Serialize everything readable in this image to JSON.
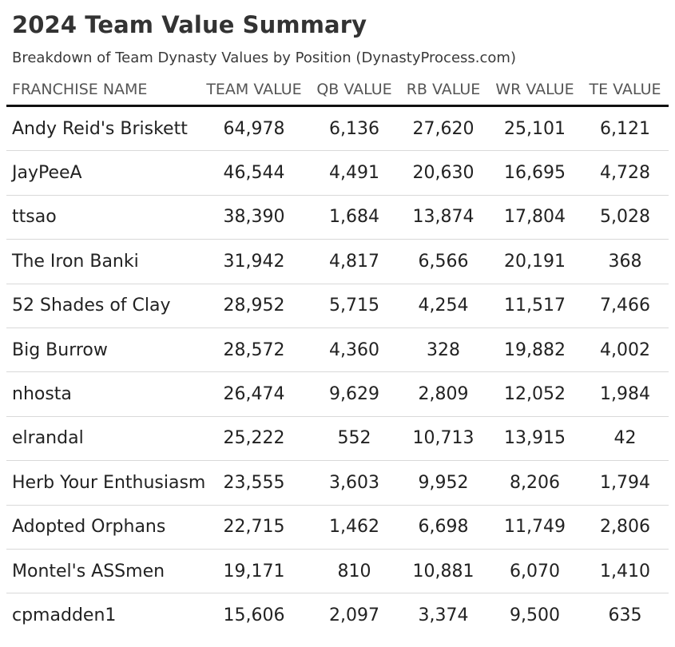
{
  "chart_data": {
    "type": "table",
    "title": "2024 Team Value Summary",
    "subtitle": "Breakdown of Team Dynasty Values by Position (DynastyProcess.com)",
    "columns": [
      "FRANCHISE NAME",
      "TEAM VALUE",
      "QB VALUE",
      "RB VALUE",
      "WR VALUE",
      "TE VALUE"
    ],
    "rows": [
      [
        "Andy Reid's Briskett",
        "64,978",
        "6,136",
        "27,620",
        "25,101",
        "6,121"
      ],
      [
        "JayPeeA",
        "46,544",
        "4,491",
        "20,630",
        "16,695",
        "4,728"
      ],
      [
        "ttsao",
        "38,390",
        "1,684",
        "13,874",
        "17,804",
        "5,028"
      ],
      [
        "The Iron Banki",
        "31,942",
        "4,817",
        "6,566",
        "20,191",
        "368"
      ],
      [
        "52 Shades of Clay",
        "28,952",
        "5,715",
        "4,254",
        "11,517",
        "7,466"
      ],
      [
        "Big Burrow",
        "28,572",
        "4,360",
        "328",
        "19,882",
        "4,002"
      ],
      [
        "nhosta",
        "26,474",
        "9,629",
        "2,809",
        "12,052",
        "1,984"
      ],
      [
        "elrandal",
        "25,222",
        "552",
        "10,713",
        "13,915",
        "42"
      ],
      [
        "Herb Your Enthusiasm",
        "23,555",
        "3,603",
        "9,952",
        "8,206",
        "1,794"
      ],
      [
        "Adopted Orphans",
        "22,715",
        "1,462",
        "6,698",
        "11,749",
        "2,806"
      ],
      [
        "Montel's ASSmen",
        "19,171",
        "810",
        "10,881",
        "6,070",
        "1,410"
      ],
      [
        "cpmadden1",
        "15,606",
        "2,097",
        "3,374",
        "9,500",
        "635"
      ]
    ]
  }
}
